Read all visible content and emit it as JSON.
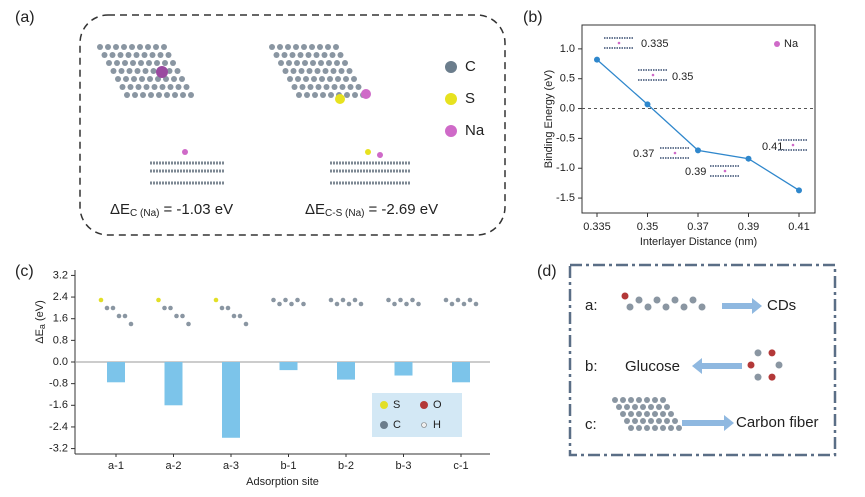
{
  "panel_labels": [
    "(a)",
    "(b)",
    "(c)",
    "(d)"
  ],
  "panel_a": {
    "legend": [
      "C",
      "S",
      "Na"
    ],
    "eq1": {
      "symbol": "ΔE",
      "subscript": "C (Na)",
      "rest": "= -1.03 eV"
    },
    "eq2": {
      "symbol": "ΔE",
      "subscript": "C-S (Na)",
      "rest": "= -2.69 eV"
    }
  },
  "panel_d": {
    "rows": [
      {
        "key": "a:",
        "label": "CDs"
      },
      {
        "key": "b:",
        "label": "Glucose"
      },
      {
        "key": "c:",
        "label": "Carbon fiber"
      }
    ]
  },
  "atom_legend": [
    "S",
    "O",
    "C",
    "H"
  ],
  "chart_data": [
    {
      "type": "line",
      "xlabel": "Interlayer Distance (nm)",
      "ylabel": "Binding Energy (eV)",
      "categories": [
        "0.335",
        "0.35",
        "0.37",
        "0.39",
        "0.41"
      ],
      "values": [
        0.82,
        0.07,
        -0.7,
        -0.84,
        -1.37
      ],
      "color": "#2f87cc",
      "ylim": [
        -1.75,
        1.4
      ],
      "yticks": [
        {
          "value": 1,
          "label": "1.0"
        },
        0.5,
        {
          "value": 0,
          "label": "0.0"
        },
        -0.5,
        {
          "value": -1,
          "label": "-1.0"
        },
        -1.5
      ],
      "annotations": [
        "0.335",
        "0.35",
        "0.37",
        "0.39",
        "0.41"
      ],
      "legend": "Na",
      "reference_line": 0
    },
    {
      "type": "bar",
      "xlabel": "Adsorption site",
      "ylabel": {
        "symbol": "ΔE",
        "subscript": "a",
        "unit": " (eV)"
      },
      "categories": [
        "a-1",
        "a-2",
        "a-3",
        "b-1",
        "b-2",
        "b-3",
        "c-1"
      ],
      "values": [
        -0.75,
        -1.6,
        -2.8,
        -0.3,
        -0.65,
        -0.5,
        -0.75
      ],
      "color": "#7cc4ea",
      "ylim": [
        -3.4,
        3.4
      ],
      "yticks": [
        3.2,
        2.4,
        1.6,
        0.8,
        {
          "value": 0,
          "label": "0.0"
        },
        -0.8,
        -1.6,
        -2.4,
        -3.2
      ]
    }
  ]
}
